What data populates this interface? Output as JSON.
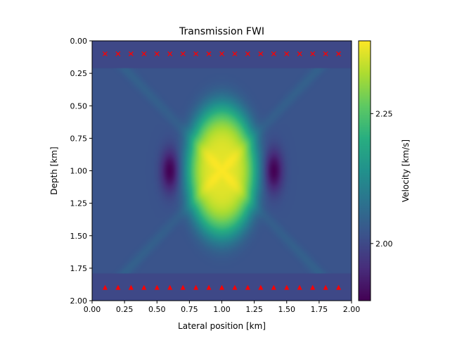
{
  "chart_data": {
    "type": "heatmap",
    "title": "Transmission FWI",
    "xlabel": "Lateral position [km]",
    "ylabel": "Depth [km]",
    "xlim": [
      0.0,
      2.0
    ],
    "ylim": [
      2.0,
      0.0
    ],
    "xticks": [
      "0.00",
      "0.25",
      "0.50",
      "0.75",
      "1.00",
      "1.25",
      "1.50",
      "1.75",
      "2.00"
    ],
    "yticks": [
      "0.00",
      "0.25",
      "0.50",
      "0.75",
      "1.00",
      "1.25",
      "1.50",
      "1.75",
      "2.00"
    ],
    "colorbar": {
      "label": "Velocity [km/s]",
      "colormap": "viridis",
      "vmin": 1.89,
      "vmax": 2.39,
      "ticks": [
        "2.00",
        "2.25"
      ],
      "tick_values": [
        2.0,
        2.25
      ]
    },
    "field": {
      "background_velocity": 2.0,
      "updated_depth_range": [
        0.21,
        1.79
      ],
      "anomaly": {
        "center_x": 1.0,
        "center_z": 1.0,
        "half_width_x": 0.28,
        "half_height_z": 0.52,
        "peak_velocity": 2.37
      },
      "side_lows": [
        {
          "x": 0.6,
          "z": 1.0,
          "velocity": 1.9
        },
        {
          "x": 1.4,
          "z": 1.0,
          "velocity": 1.9
        }
      ]
    },
    "sources": {
      "marker": "x",
      "color": "#ff0000",
      "depth": 0.1,
      "x": [
        0.1,
        0.2,
        0.3,
        0.4,
        0.5,
        0.6,
        0.7,
        0.8,
        0.9,
        1.0,
        1.1,
        1.2,
        1.3,
        1.4,
        1.5,
        1.6,
        1.7,
        1.8,
        1.9
      ]
    },
    "receivers": {
      "marker": "triangle",
      "color": "#ff0000",
      "depth": 1.9,
      "x": [
        0.1,
        0.2,
        0.3,
        0.4,
        0.5,
        0.6,
        0.7,
        0.8,
        0.9,
        1.0,
        1.1,
        1.2,
        1.3,
        1.4,
        1.5,
        1.6,
        1.7,
        1.8,
        1.9
      ]
    }
  }
}
